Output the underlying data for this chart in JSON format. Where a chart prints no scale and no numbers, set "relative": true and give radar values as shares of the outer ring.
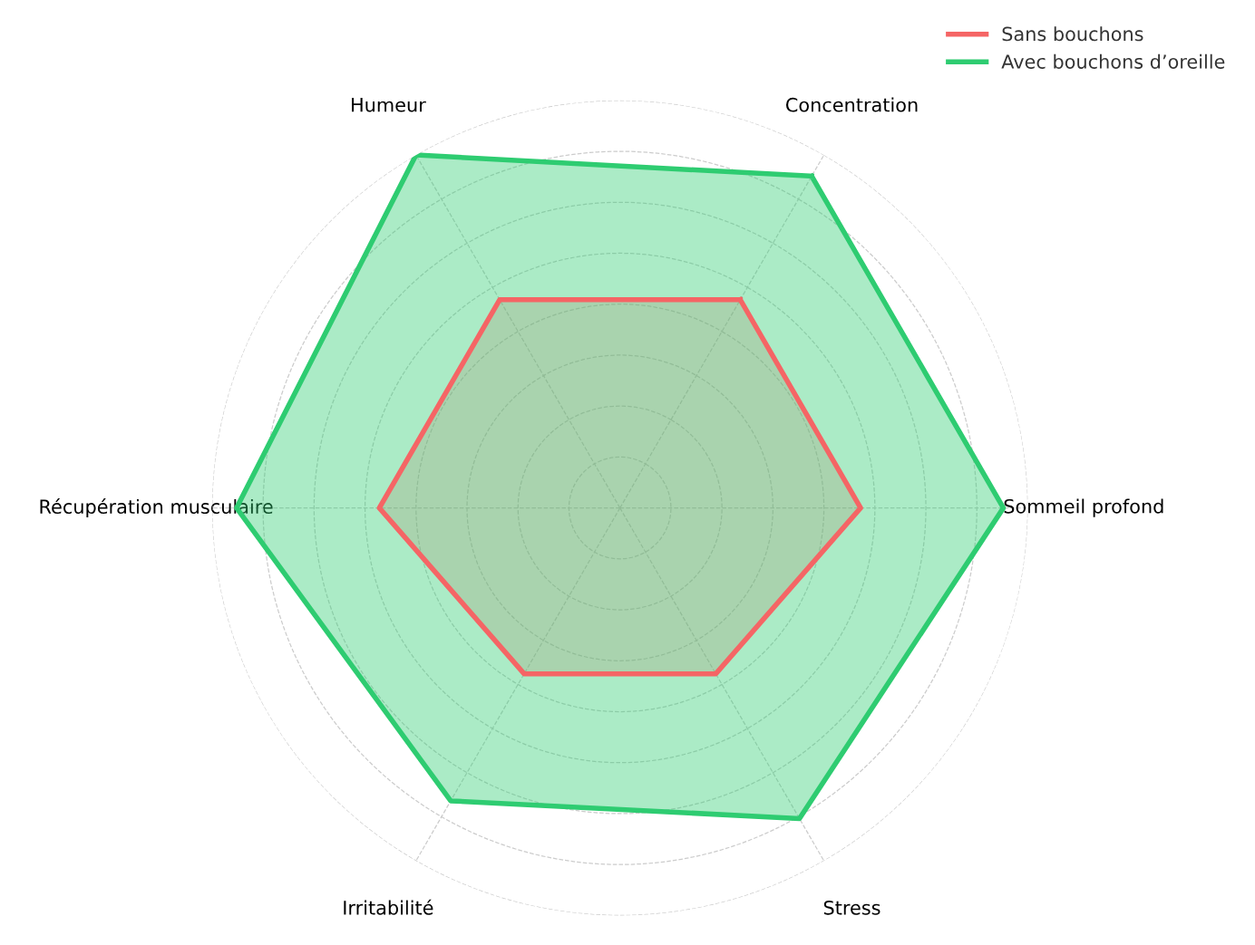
{
  "chart_data": {
    "type": "radar",
    "relative": true,
    "categories": [
      "Concentration",
      "Sommeil profond",
      "Stress",
      "Irritabilité",
      "Récupération musculaire",
      "Humeur"
    ],
    "series": [
      {
        "name": "Sans bouchons",
        "color": "#f56565",
        "values": [
          0.59,
          0.59,
          0.47,
          0.47,
          0.59,
          0.59
        ]
      },
      {
        "name": "Avec bouchons d’oreille",
        "color": "#2ecc71",
        "values": [
          0.94,
          0.94,
          0.88,
          0.83,
          0.94,
          1.0
        ]
      }
    ],
    "grid": true,
    "line_style": "solid",
    "marker": "none",
    "legend": "top right"
  }
}
